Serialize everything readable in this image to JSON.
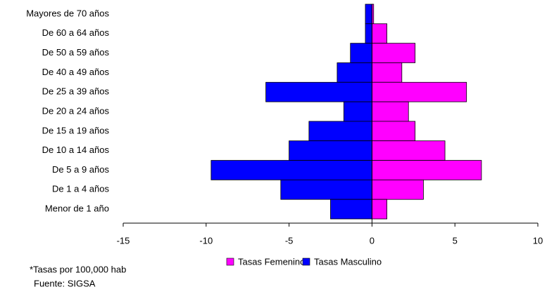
{
  "chart_data": {
    "type": "bar",
    "orientation": "horizontal",
    "categories": [
      "Mayores de 70 años",
      "De 60 a 64 años",
      "De 50 a 59 años",
      "De 40 a 49 años",
      "De 25 a 39 años",
      "De 20 a 24 años",
      "De 15 a 19 años",
      "De 10 a 14 años",
      "De 5 a 9 años",
      "De 1 a 4 años",
      "Menor de 1 año"
    ],
    "series": [
      {
        "name": "Tasas Femenino",
        "color": "#ff00ff",
        "values": [
          0.1,
          0.9,
          2.6,
          1.8,
          5.7,
          2.2,
          2.6,
          4.4,
          6.6,
          3.1,
          0.9
        ]
      },
      {
        "name": "Tasas Masculino",
        "color": "#0000ff",
        "values": [
          -0.4,
          -0.4,
          -1.3,
          -2.1,
          -6.4,
          -1.7,
          -3.8,
          -5.0,
          -9.7,
          -5.5,
          -2.5
        ]
      }
    ],
    "xlim": [
      -15,
      10
    ],
    "xticks": [
      -15,
      -10,
      -5,
      0,
      5,
      10
    ],
    "legend": "bottom",
    "annotations": [
      "*Tasas por 100,000 hab",
      "Fuente: SIGSA"
    ]
  }
}
